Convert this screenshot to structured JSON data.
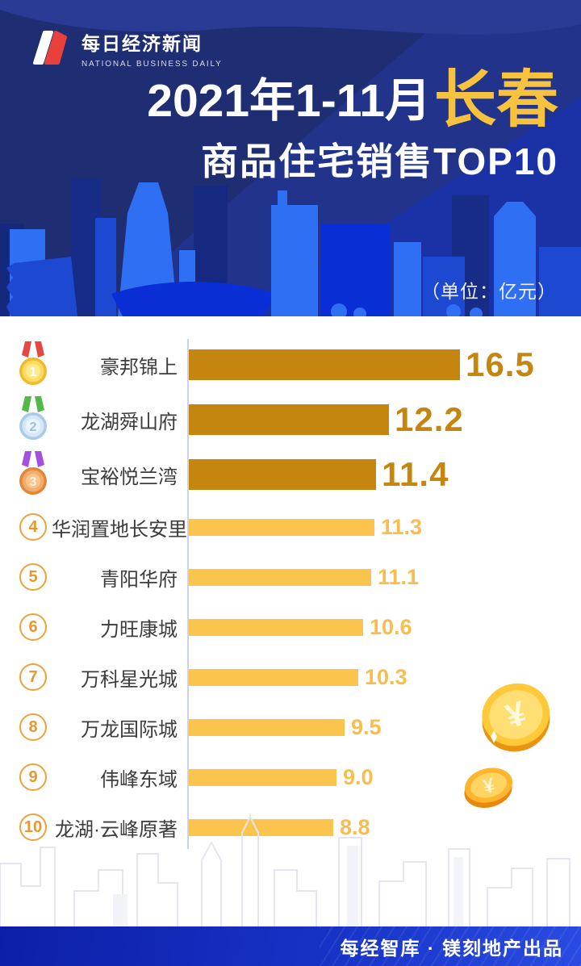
{
  "header": {
    "logo_cn": "每日经济新闻",
    "logo_en": "NATIONAL BUSINESS DAILY",
    "title_prefix": "2021年1-11月",
    "title_city": "长春",
    "title_line2": "商品住宅销售TOP10",
    "unit_label": "（单位：亿元）"
  },
  "chart_data": {
    "type": "bar",
    "orientation": "horizontal",
    "title": "2021年1-11月长春商品住宅销售TOP10",
    "unit": "亿元",
    "xlim": [
      0,
      16.5
    ],
    "grid": false,
    "legend": "none",
    "categories": [
      "豪邦锦上",
      "龙湖舜山府",
      "宝裕悦兰湾",
      "华润置地长安里",
      "青阳华府",
      "力旺康城",
      "万科星光城",
      "万龙国际城",
      "伟峰东域",
      "龙湖·云峰原著"
    ],
    "values": [
      16.5,
      12.2,
      11.4,
      11.3,
      11.1,
      10.6,
      10.3,
      9.5,
      9.0,
      8.8
    ],
    "value_labels": [
      "16.5",
      "12.2",
      "11.4",
      "11.3",
      "11.1",
      "10.6",
      "10.3",
      "9.5",
      "9.0",
      "8.8"
    ],
    "bar_colors": {
      "top3": "#C5860F",
      "rest": "#FBC54D"
    },
    "value_colors": {
      "top3": "#C5860F",
      "rest": "#F8BD4C"
    }
  },
  "rows": [
    {
      "rank": "1",
      "name": "豪邦锦上",
      "value": "16.5",
      "tier": "top"
    },
    {
      "rank": "2",
      "name": "龙湖舜山府",
      "value": "12.2",
      "tier": "top"
    },
    {
      "rank": "3",
      "name": "宝裕悦兰湾",
      "value": "11.4",
      "tier": "top"
    },
    {
      "rank": "4",
      "name": "华润置地长安里",
      "value": "11.3",
      "tier": "normal"
    },
    {
      "rank": "5",
      "name": "青阳华府",
      "value": "11.1",
      "tier": "normal"
    },
    {
      "rank": "6",
      "name": "力旺康城",
      "value": "10.6",
      "tier": "normal"
    },
    {
      "rank": "7",
      "name": "万科星光城",
      "value": "10.3",
      "tier": "normal"
    },
    {
      "rank": "8",
      "name": "万龙国际城",
      "value": "9.5",
      "tier": "normal"
    },
    {
      "rank": "9",
      "name": "伟峰东域",
      "value": "9.0",
      "tier": "normal"
    },
    {
      "rank": "10",
      "name": "龙湖·云峰原著",
      "value": "8.8",
      "tier": "normal"
    }
  ],
  "medals": {
    "1": {
      "body": "#FBDC5E",
      "ring": "#F0B92F",
      "inner": "#FDE98E",
      "num": "#FFFFFF",
      "ribbon": "#E8473F"
    },
    "2": {
      "body": "#D6E8F8",
      "ring": "#A9CBE9",
      "inner": "#EAF4FC",
      "num": "#9CC0E4",
      "ribbon": "#53B848"
    },
    "3": {
      "body": "#F4AC6A",
      "ring": "#E1873B",
      "inner": "#F8C58F",
      "num": "#FFF3E2",
      "ribbon": "#A44FE0"
    }
  },
  "colors": {
    "rank_circle_border": "#EBA33C",
    "rank_circle_text": "#E8962F",
    "axis_line": "#CBD3EC",
    "header_bg": "#1F2D72",
    "title_highlight": "#F7C23E",
    "footer_bg": "#1632C6"
  },
  "footer": {
    "credit": "每经智库 · 镁刻地产出品"
  }
}
